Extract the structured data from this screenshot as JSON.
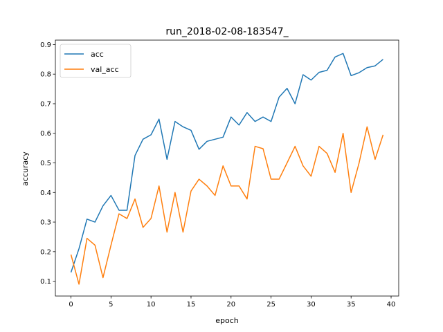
{
  "chart_data": {
    "type": "line",
    "title": "run_2018-02-08-183547_",
    "xlabel": "epoch",
    "ylabel": "accuracy",
    "xlim": [
      -1.95,
      40.95
    ],
    "ylim": [
      0.05,
      0.915
    ],
    "xticks": [
      0,
      5,
      10,
      15,
      20,
      25,
      30,
      35,
      40
    ],
    "yticks": [
      0.1,
      0.2,
      0.3,
      0.4,
      0.5,
      0.6,
      0.7,
      0.8,
      0.9
    ],
    "grid": false,
    "legend_position": "top-left",
    "x": [
      0,
      1,
      2,
      3,
      4,
      5,
      6,
      7,
      8,
      9,
      10,
      11,
      12,
      13,
      14,
      15,
      16,
      17,
      18,
      19,
      20,
      21,
      22,
      23,
      24,
      25,
      26,
      27,
      28,
      29,
      30,
      31,
      32,
      33,
      34,
      35,
      36,
      37,
      38,
      39
    ],
    "series": [
      {
        "name": "acc",
        "color": "#1f77b4",
        "values": [
          0.13,
          0.21,
          0.31,
          0.3,
          0.355,
          0.39,
          0.34,
          0.34,
          0.525,
          0.58,
          0.595,
          0.648,
          0.512,
          0.64,
          0.622,
          0.61,
          0.546,
          0.573,
          0.58,
          0.587,
          0.655,
          0.628,
          0.67,
          0.64,
          0.655,
          0.64,
          0.722,
          0.752,
          0.7,
          0.798,
          0.78,
          0.806,
          0.813,
          0.858,
          0.87,
          0.795,
          0.805,
          0.822,
          0.828,
          0.85
        ]
      },
      {
        "name": "val_acc",
        "color": "#ff7f0e",
        "values": [
          0.19,
          0.09,
          0.245,
          0.222,
          0.112,
          0.222,
          0.328,
          0.312,
          0.378,
          0.282,
          0.312,
          0.422,
          0.266,
          0.4,
          0.266,
          0.405,
          0.445,
          0.422,
          0.39,
          0.49,
          0.422,
          0.422,
          0.378,
          0.556,
          0.548,
          0.445,
          0.445,
          0.5,
          0.556,
          0.49,
          0.455,
          0.556,
          0.532,
          0.468,
          0.6,
          0.4,
          0.5,
          0.622,
          0.512,
          0.595
        ]
      }
    ]
  }
}
